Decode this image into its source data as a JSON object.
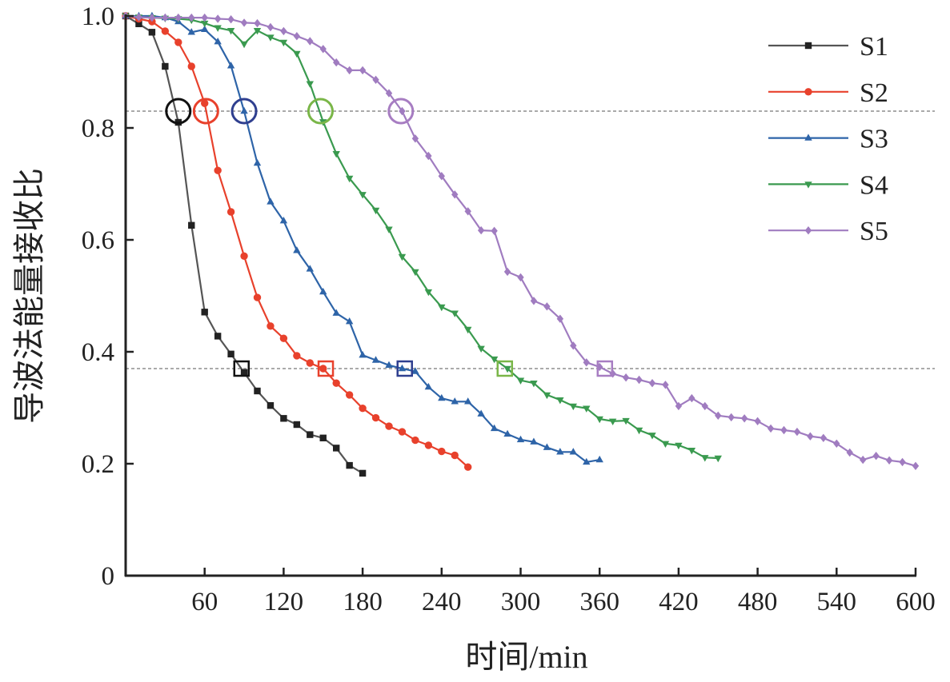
{
  "chart_data": {
    "type": "line",
    "title": "",
    "xlabel": "时间/min",
    "ylabel": "导波法能量接收比",
    "xlim": [
      0,
      600
    ],
    "ylim": [
      0,
      1.0
    ],
    "xticks": [
      60,
      120,
      180,
      240,
      300,
      360,
      420,
      480,
      540,
      600
    ],
    "xtick_labels": [
      "60",
      "120",
      "180",
      "240",
      "300",
      "360",
      "420",
      "480",
      "540",
      "600"
    ],
    "yticks": [
      0,
      0.2,
      0.4,
      0.6,
      0.8,
      1.0
    ],
    "ytick_labels": [
      "0",
      "0.2",
      "0.4",
      "0.6",
      "0.8",
      "1.0"
    ],
    "grid": false,
    "legend_position": "top-right",
    "reference_lines": [
      0.83,
      0.37
    ],
    "series": [
      {
        "name": "S1",
        "color": "#222222",
        "line_color": "#555555",
        "marker": "square",
        "highlight_color": "#111111",
        "x": [
          0,
          10,
          20,
          30,
          40,
          50,
          60,
          70,
          80,
          90,
          100,
          110,
          120,
          130,
          140,
          150,
          160,
          170,
          180
        ],
        "y": [
          1.0,
          0.986,
          0.971,
          0.91,
          0.81,
          0.626,
          0.471,
          0.428,
          0.396,
          0.363,
          0.33,
          0.304,
          0.281,
          0.27,
          0.252,
          0.246,
          0.228,
          0.197,
          0.183
        ],
        "t_at_083": 40,
        "t_at_037": 88
      },
      {
        "name": "S2",
        "color": "#e8412c",
        "line_color": "#e8412c",
        "marker": "circle",
        "highlight_color": "#e8412c",
        "x": [
          0,
          10,
          20,
          30,
          40,
          50,
          60,
          70,
          80,
          90,
          100,
          110,
          120,
          130,
          140,
          150,
          160,
          170,
          180,
          190,
          200,
          210,
          220,
          230,
          240,
          250,
          260
        ],
        "y": [
          1.0,
          0.995,
          0.99,
          0.973,
          0.953,
          0.91,
          0.844,
          0.724,
          0.65,
          0.571,
          0.497,
          0.446,
          0.424,
          0.393,
          0.38,
          0.37,
          0.344,
          0.323,
          0.299,
          0.282,
          0.267,
          0.257,
          0.242,
          0.233,
          0.222,
          0.215,
          0.194
        ],
        "t_at_083": 61,
        "t_at_037": 152
      },
      {
        "name": "S3",
        "color": "#2e64a8",
        "line_color": "#2e64a8",
        "marker": "triangle-up",
        "highlight_color": "#2f3f8f",
        "x": [
          0,
          10,
          20,
          30,
          40,
          50,
          60,
          70,
          80,
          90,
          100,
          110,
          120,
          130,
          140,
          150,
          160,
          170,
          180,
          190,
          200,
          210,
          220,
          230,
          240,
          250,
          260,
          270,
          280,
          290,
          300,
          310,
          320,
          330,
          340,
          350,
          360
        ],
        "y": [
          1.0,
          1.0,
          1.0,
          0.997,
          0.99,
          0.971,
          0.976,
          0.954,
          0.911,
          0.83,
          0.737,
          0.668,
          0.634,
          0.581,
          0.548,
          0.507,
          0.469,
          0.454,
          0.394,
          0.385,
          0.376,
          0.37,
          0.365,
          0.337,
          0.317,
          0.311,
          0.311,
          0.289,
          0.263,
          0.253,
          0.243,
          0.239,
          0.229,
          0.221,
          0.221,
          0.203,
          0.207
        ],
        "t_at_083": 90,
        "t_at_037": 212
      },
      {
        "name": "S4",
        "color": "#3a9a4f",
        "line_color": "#3a9a4f",
        "marker": "triangle-down",
        "highlight_color": "#7ab648",
        "x": [
          0,
          10,
          20,
          30,
          40,
          50,
          60,
          70,
          80,
          90,
          100,
          110,
          120,
          130,
          140,
          150,
          160,
          170,
          180,
          190,
          200,
          210,
          220,
          230,
          240,
          250,
          260,
          270,
          280,
          290,
          300,
          310,
          320,
          330,
          340,
          350,
          360,
          370,
          380,
          390,
          400,
          410,
          420,
          430,
          440,
          450
        ],
        "y": [
          1.0,
          0.998,
          0.997,
          0.996,
          0.995,
          0.993,
          0.987,
          0.979,
          0.974,
          0.95,
          0.974,
          0.962,
          0.953,
          0.933,
          0.879,
          0.811,
          0.754,
          0.71,
          0.681,
          0.653,
          0.619,
          0.57,
          0.543,
          0.507,
          0.48,
          0.469,
          0.44,
          0.406,
          0.387,
          0.37,
          0.349,
          0.344,
          0.323,
          0.314,
          0.303,
          0.299,
          0.28,
          0.276,
          0.277,
          0.26,
          0.251,
          0.236,
          0.233,
          0.224,
          0.211,
          0.21
        ],
        "t_at_083": 148,
        "t_at_037": 288
      },
      {
        "name": "S5",
        "color": "#a07cc0",
        "line_color": "#a07cc0",
        "marker": "diamond",
        "highlight_color": "#a77dc2",
        "x": [
          0,
          10,
          20,
          30,
          40,
          50,
          60,
          70,
          80,
          90,
          100,
          110,
          120,
          130,
          140,
          150,
          160,
          170,
          180,
          190,
          200,
          210,
          220,
          230,
          240,
          250,
          260,
          270,
          280,
          290,
          300,
          310,
          320,
          330,
          340,
          350,
          360,
          370,
          380,
          390,
          400,
          410,
          420,
          430,
          440,
          450,
          460,
          470,
          480,
          490,
          500,
          510,
          520,
          530,
          540,
          550,
          560,
          570,
          580,
          590,
          600
        ],
        "y": [
          1.0,
          0.998,
          0.997,
          0.997,
          0.997,
          0.997,
          0.997,
          0.995,
          0.994,
          0.988,
          0.987,
          0.98,
          0.973,
          0.964,
          0.955,
          0.941,
          0.917,
          0.903,
          0.903,
          0.886,
          0.862,
          0.83,
          0.781,
          0.75,
          0.714,
          0.681,
          0.651,
          0.617,
          0.616,
          0.543,
          0.533,
          0.491,
          0.481,
          0.459,
          0.411,
          0.381,
          0.373,
          0.361,
          0.354,
          0.35,
          0.344,
          0.341,
          0.303,
          0.317,
          0.303,
          0.286,
          0.283,
          0.281,
          0.276,
          0.263,
          0.26,
          0.257,
          0.249,
          0.246,
          0.236,
          0.22,
          0.207,
          0.214,
          0.206,
          0.203,
          0.196
        ],
        "t_at_083": 209,
        "t_at_037": 364
      }
    ]
  }
}
